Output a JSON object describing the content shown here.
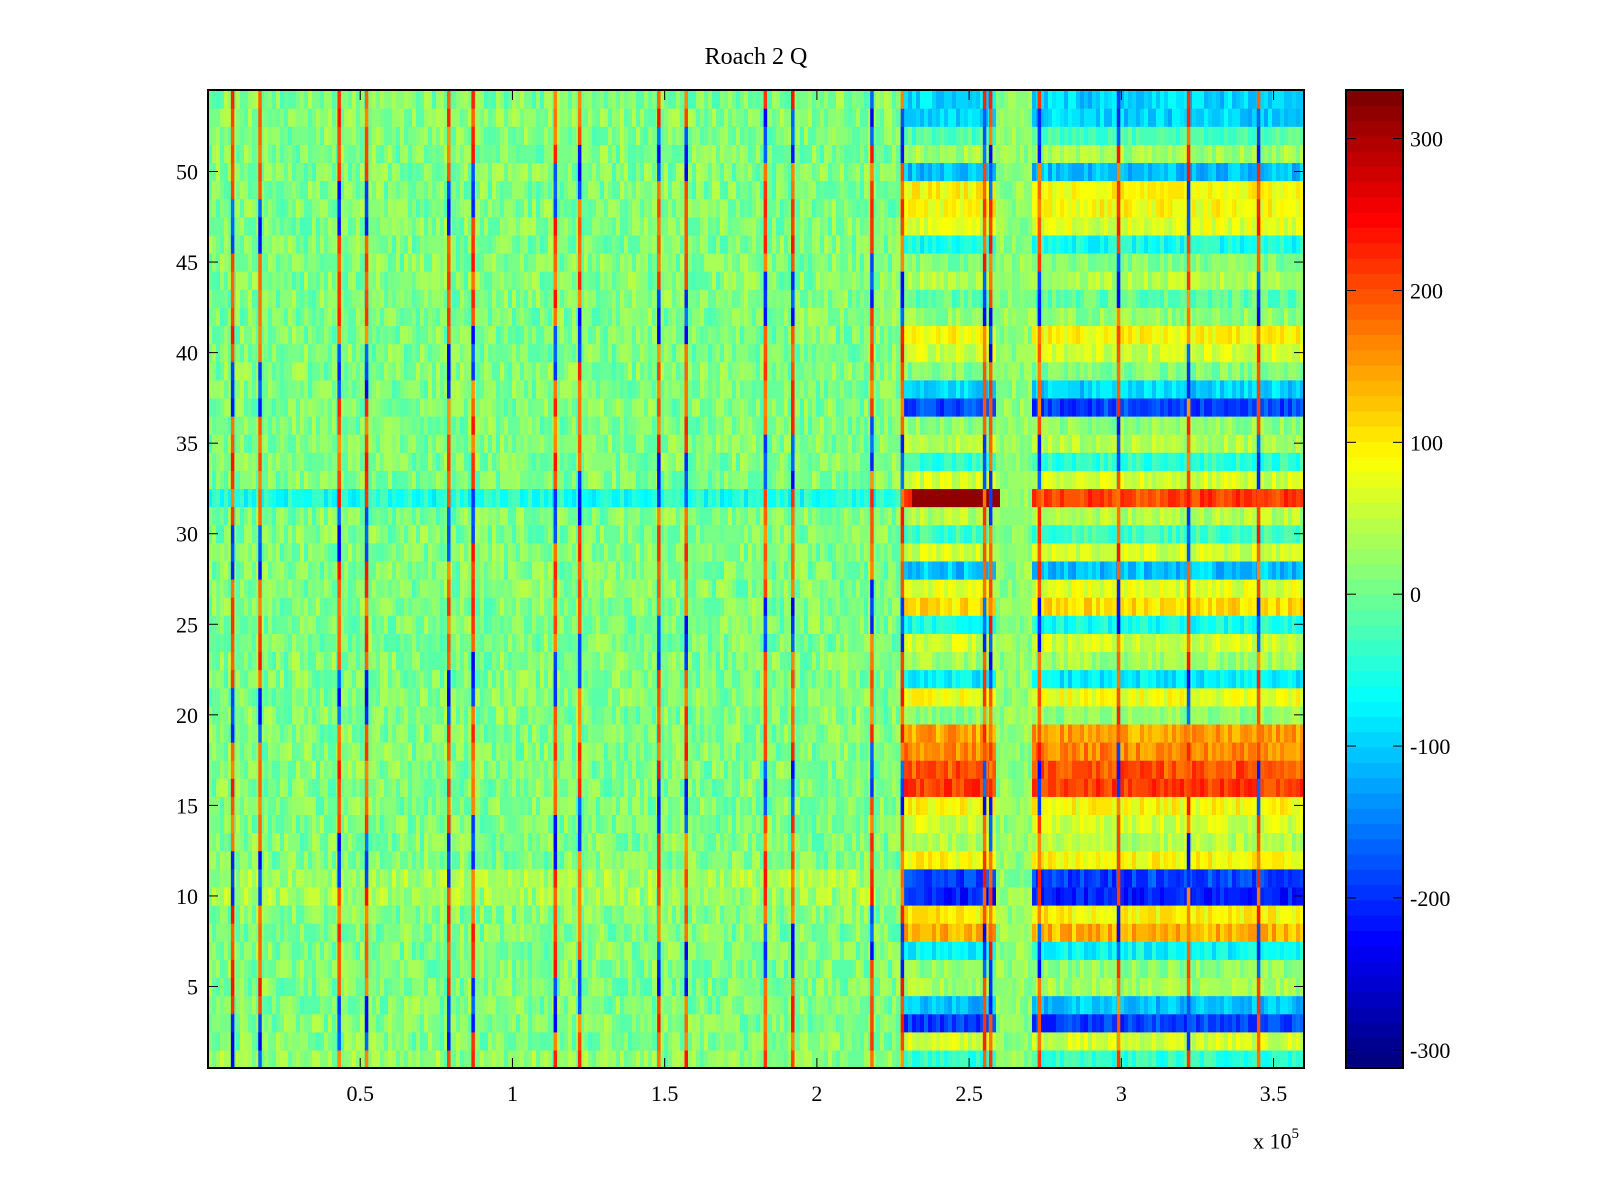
{
  "chart_data": {
    "type": "heatmap",
    "title": "Roach 2 Q",
    "xlabel": "",
    "ylabel": "",
    "x_multiplier_label": "x 10",
    "x_multiplier_exponent": "5",
    "xlim": [
      0,
      360000
    ],
    "ylim": [
      0.5,
      54.5
    ],
    "x_ticks": [
      50000,
      100000,
      150000,
      200000,
      250000,
      300000,
      350000
    ],
    "x_tick_labels": [
      "0.5",
      "1",
      "1.5",
      "2",
      "2.5",
      "3",
      "3.5"
    ],
    "y_ticks": [
      5,
      10,
      15,
      20,
      25,
      30,
      35,
      40,
      45,
      50
    ],
    "y_tick_labels": [
      "5",
      "10",
      "15",
      "20",
      "25",
      "30",
      "35",
      "40",
      "45",
      "50"
    ],
    "colorbar": {
      "clim": [
        -312,
        332
      ],
      "ticks": [
        -300,
        -200,
        -100,
        0,
        100,
        200,
        300
      ],
      "tick_labels": [
        "-300",
        "-200",
        "-100",
        "0",
        "100",
        "200",
        "300"
      ],
      "colormap": "jet",
      "levels": 64
    },
    "rows": 54,
    "regime_change_x": 228000,
    "spike_columns_x": [
      8000,
      17000,
      43000,
      52000,
      79000,
      87000,
      114000,
      122000,
      148000,
      157000,
      183000,
      192000,
      218000,
      228000,
      255000,
      257000,
      273000,
      299000,
      322000,
      345000
    ],
    "left_region_row_means": {
      "default": 10,
      "row_values": {
        "11": 35,
        "10": 30,
        "32": -55,
        "53": 15,
        "1": 20
      }
    },
    "right_region_row_means": [
      {
        "row": 1,
        "value": -40
      },
      {
        "row": 2,
        "value": 60
      },
      {
        "row": 3,
        "value": -190
      },
      {
        "row": 4,
        "value": -110
      },
      {
        "row": 5,
        "value": 30
      },
      {
        "row": 6,
        "value": 20
      },
      {
        "row": 7,
        "value": -70
      },
      {
        "row": 8,
        "value": 140
      },
      {
        "row": 9,
        "value": 95
      },
      {
        "row": 10,
        "value": -215
      },
      {
        "row": 11,
        "value": -190
      },
      {
        "row": 12,
        "value": 90
      },
      {
        "row": 13,
        "value": 40
      },
      {
        "row": 14,
        "value": 60
      },
      {
        "row": 15,
        "value": 90
      },
      {
        "row": 16,
        "value": 215
      },
      {
        "row": 17,
        "value": 200
      },
      {
        "row": 18,
        "value": 165
      },
      {
        "row": 19,
        "value": 150
      },
      {
        "row": 20,
        "value": 20
      },
      {
        "row": 21,
        "value": 80
      },
      {
        "row": 22,
        "value": -80
      },
      {
        "row": 23,
        "value": 30
      },
      {
        "row": 24,
        "value": 60
      },
      {
        "row": 25,
        "value": -60
      },
      {
        "row": 26,
        "value": 110
      },
      {
        "row": 27,
        "value": 70
      },
      {
        "row": 28,
        "value": -110
      },
      {
        "row": 29,
        "value": 60
      },
      {
        "row": 30,
        "value": -30
      },
      {
        "row": 31,
        "value": 40
      },
      {
        "row": 32,
        "value": 210
      },
      {
        "row": 33,
        "value": 60
      },
      {
        "row": 34,
        "value": -40
      },
      {
        "row": 35,
        "value": 40
      },
      {
        "row": 36,
        "value": 20
      },
      {
        "row": 37,
        "value": -190
      },
      {
        "row": 38,
        "value": -95
      },
      {
        "row": 39,
        "value": 10
      },
      {
        "row": 40,
        "value": 60
      },
      {
        "row": 41,
        "value": 90
      },
      {
        "row": 42,
        "value": 20
      },
      {
        "row": 43,
        "value": -10
      },
      {
        "row": 44,
        "value": 40
      },
      {
        "row": 45,
        "value": 10
      },
      {
        "row": 46,
        "value": -60
      },
      {
        "row": 47,
        "value": 70
      },
      {
        "row": 48,
        "value": 85
      },
      {
        "row": 49,
        "value": 90
      },
      {
        "row": 50,
        "value": -110
      },
      {
        "row": 51,
        "value": 30
      },
      {
        "row": 52,
        "value": -20
      },
      {
        "row": 53,
        "value": -100
      },
      {
        "row": 54,
        "value": -95
      }
    ],
    "right_region_gap": {
      "x_start": 258000,
      "x_end": 270000,
      "value": 20
    },
    "row32_early_peak": {
      "x_start": 230000,
      "x_end": 260000,
      "value": 320
    }
  }
}
